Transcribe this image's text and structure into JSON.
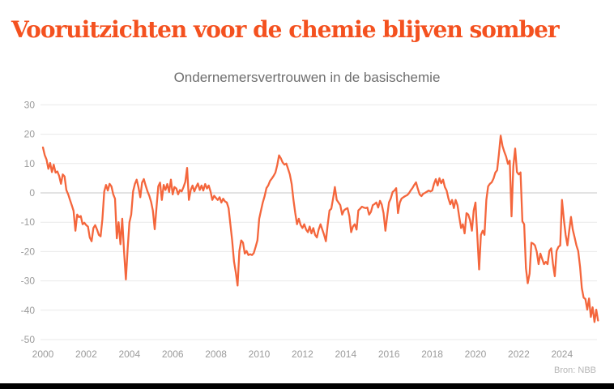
{
  "header": {
    "title": "Vooruitzichten voor de chemie blijven somber",
    "title_color": "#F4511F"
  },
  "chart_data": {
    "type": "line",
    "title": "Vooruitzichten voor de chemie blijven somber",
    "subtitle": "Ondernemersvertrouwen in de basischemie",
    "source": "Bron: NBB",
    "series_name": "Ondernemersvertrouwen in de basischemie",
    "frequency": "monthly",
    "x_start": {
      "year": 2000,
      "month": 1
    },
    "x_tick_labels": [
      "2000",
      "2002",
      "2004",
      "2006",
      "2008",
      "2010",
      "2012",
      "2014",
      "2016",
      "2018",
      "2020",
      "2022",
      "2024"
    ],
    "y_ticks": [
      30,
      20,
      10,
      0,
      -10,
      -20,
      -30,
      -40,
      -50
    ],
    "ylim": [
      -50,
      30
    ],
    "grid": "horizontal",
    "legend_position": "none",
    "line_color": "#F4663C",
    "grid_color": "#e9e9e9",
    "zero_line_color": "#c7c7c7",
    "axis_label_color": "#9b9b9b",
    "values": [
      15.5,
      12.9,
      11.3,
      8.2,
      10.2,
      7.1,
      9.6,
      6.9,
      7.3,
      5.8,
      3.1,
      6.3,
      5.6,
      1.0,
      -0.5,
      -2.4,
      -4.2,
      -6.1,
      -12.9,
      -7.4,
      -8.3,
      -7.9,
      -10.7,
      -10.2,
      -11.0,
      -11.5,
      -15.2,
      -16.5,
      -12.0,
      -11.0,
      -12.5,
      -14.3,
      -14.8,
      -9.0,
      0.5,
      2.7,
      0.8,
      3.1,
      2.2,
      -0.5,
      -2.0,
      -15.5,
      -10.0,
      -17.5,
      -8.8,
      -19.8,
      -29.5,
      -19.0,
      -10.0,
      -7.4,
      0.5,
      3.0,
      4.5,
      2.0,
      -1.5,
      3.5,
      4.7,
      2.5,
      0.5,
      -1.0,
      -3.0,
      -6.0,
      -12.4,
      -5.0,
      2.2,
      3.5,
      -2.4,
      2.7,
      1.0,
      3.0,
      0.3,
      4.5,
      -0.5,
      2.0,
      1.5,
      -0.5,
      1.0,
      0.5,
      2.0,
      3.8,
      8.5,
      -2.4,
      1.0,
      2.5,
      0.5,
      2.0,
      3.2,
      1.0,
      2.5,
      0.8,
      3.0,
      1.5,
      2.5,
      0.5,
      -2.4,
      -1.0,
      -1.7,
      -2.4,
      -1.5,
      -3.3,
      -2.0,
      -2.9,
      -3.3,
      -5.2,
      -10.7,
      -16.2,
      -23.4,
      -27.1,
      -31.6,
      -19.8,
      -16.2,
      -17.0,
      -20.7,
      -19.8,
      -21.2,
      -20.9,
      -21.2,
      -20.5,
      -18.4,
      -16.2,
      -8.8,
      -6.0,
      -3.3,
      -1.1,
      1.6,
      2.5,
      4.1,
      4.9,
      5.8,
      6.9,
      9.5,
      12.8,
      11.8,
      10.4,
      9.6,
      10.0,
      8.2,
      6.3,
      3.0,
      -2.4,
      -6.9,
      -10.7,
      -8.8,
      -11.0,
      -12.0,
      -10.7,
      -12.5,
      -13.4,
      -11.5,
      -13.8,
      -12.0,
      -14.3,
      -15.2,
      -12.5,
      -10.7,
      -12.5,
      -14.3,
      -16.5,
      -10.7,
      -6.0,
      -5.4,
      -1.9,
      2.0,
      -2.4,
      -3.3,
      -4.2,
      -7.4,
      -6.0,
      -5.5,
      -5.2,
      -8.0,
      -13.4,
      -11.5,
      -10.7,
      -12.5,
      -6.0,
      -5.4,
      -4.7,
      -5.0,
      -5.2,
      -5.0,
      -7.4,
      -6.5,
      -4.2,
      -3.8,
      -3.3,
      -5.0,
      -2.7,
      -4.0,
      -6.9,
      -12.9,
      -7.9,
      -3.3,
      -1.9,
      0.3,
      0.8,
      1.6,
      -6.9,
      -3.3,
      -1.9,
      -1.5,
      -1.1,
      -0.8,
      -0.2,
      0.8,
      1.6,
      2.7,
      3.6,
      1.4,
      -0.5,
      -1.1,
      -0.3,
      0.0,
      0.4,
      0.8,
      0.5,
      0.8,
      3.1,
      4.7,
      2.5,
      5.0,
      3.3,
      4.5,
      2.0,
      0.8,
      -1.9,
      -3.9,
      -2.4,
      -5.2,
      -2.4,
      -4.2,
      -8.3,
      -12.0,
      -10.7,
      -13.8,
      -6.9,
      -7.4,
      -9.3,
      -12.9,
      -6.0,
      -3.3,
      -14.3,
      -26.1,
      -14.3,
      -12.9,
      -14.3,
      -2.4,
      2.2,
      3.1,
      3.6,
      4.9,
      6.9,
      7.7,
      13.2,
      19.5,
      15.9,
      14.0,
      12.4,
      9.9,
      11.0,
      -8.0,
      9.0,
      15.1,
      7.1,
      6.3,
      7.0,
      -9.7,
      -10.7,
      -25.7,
      -30.8,
      -27.5,
      -17.0,
      -17.3,
      -17.9,
      -20.0,
      -24.3,
      -20.7,
      -22.5,
      -24.3,
      -23.5,
      -24.3,
      -19.8,
      -18.9,
      -24.3,
      -28.4,
      -19.8,
      -18.4,
      -17.9,
      -2.4,
      -8.8,
      -14.3,
      -17.9,
      -12.9,
      -8.2,
      -12.5,
      -15.2,
      -17.9,
      -19.8,
      -25.2,
      -32.5,
      -35.7,
      -36.2,
      -39.8,
      -36.0,
      -42.3,
      -39.0,
      -44.0,
      -39.8,
      -43.5
    ]
  }
}
